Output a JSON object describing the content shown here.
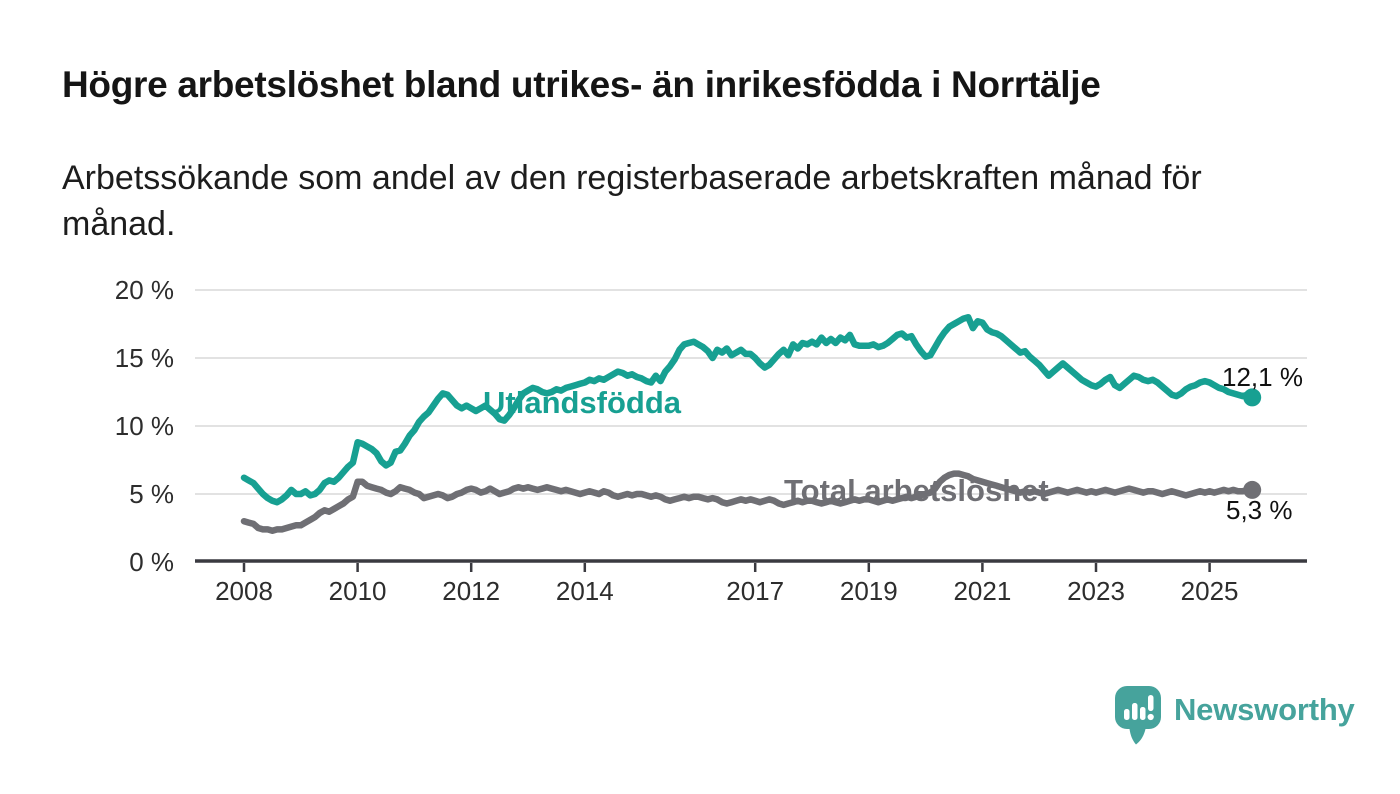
{
  "header": {
    "title": "Högre arbetslöshet bland utrikes- än inrikesfödda i Norrtälje",
    "subtitle_line1": "Arbetssökande som andel av den registerbaserade arbetskraften månad för",
    "subtitle_line2": "månad."
  },
  "branding": {
    "name": "Newsworthy",
    "logo_icon": "bar-chart-speech-bubble",
    "brand_color": "#46a39c"
  },
  "colors": {
    "series_foreign_born": "#17a092",
    "series_total": "#6f6f74",
    "gridline": "#d9d9d9",
    "axis": "#3a3a40",
    "tick_label": "#2d2d2d",
    "value_label": "#111111"
  },
  "chart_data": {
    "type": "line",
    "unit": "%",
    "grid": "horizontal",
    "legend_position": "inline-labels",
    "x_axis": {
      "start_year": 2008,
      "frequency": "monthly",
      "tick_years": [
        2008,
        2010,
        2012,
        2014,
        2017,
        2019,
        2021,
        2023,
        2025
      ],
      "tick_labels": [
        "2008",
        "2010",
        "2012",
        "2014",
        "2017",
        "2019",
        "2021",
        "2023",
        "2025"
      ]
    },
    "y_axis": {
      "ylim": [
        0,
        20
      ],
      "tick_values": [
        20,
        15,
        10,
        5,
        0
      ],
      "tick_labels": [
        "20 %",
        "15 %",
        "10 %",
        "5 %",
        "0 %"
      ]
    },
    "series": [
      {
        "name": "Utlandsfödda",
        "label": "Utlandsfödda",
        "color": "#17a092",
        "end_value": 12.1,
        "end_value_label": "12,1 %",
        "values": [
          6.2,
          6.0,
          5.8,
          5.4,
          5.0,
          4.7,
          4.5,
          4.4,
          4.6,
          4.9,
          5.3,
          5.0,
          5.0,
          5.2,
          4.9,
          5.0,
          5.3,
          5.8,
          6.0,
          5.9,
          6.2,
          6.6,
          7.0,
          7.3,
          8.8,
          8.7,
          8.5,
          8.3,
          8.0,
          7.4,
          7.1,
          7.3,
          8.1,
          8.2,
          8.7,
          9.3,
          9.7,
          10.3,
          10.7,
          11.0,
          11.5,
          12.0,
          12.4,
          12.3,
          11.9,
          11.5,
          11.3,
          11.5,
          11.3,
          11.1,
          11.3,
          11.5,
          11.2,
          10.9,
          10.5,
          10.4,
          10.8,
          11.3,
          11.9,
          12.4,
          12.6,
          12.8,
          12.7,
          12.5,
          12.4,
          12.5,
          12.7,
          12.6,
          12.8,
          12.9,
          13.0,
          13.1,
          13.2,
          13.4,
          13.3,
          13.5,
          13.4,
          13.6,
          13.8,
          14.0,
          13.9,
          13.7,
          13.8,
          13.6,
          13.5,
          13.3,
          13.2,
          13.7,
          13.3,
          14.0,
          14.4,
          14.9,
          15.6,
          16.0,
          16.1,
          16.2,
          16.0,
          15.8,
          15.5,
          15.0,
          15.6,
          15.4,
          15.7,
          15.2,
          15.4,
          15.6,
          15.3,
          15.3,
          15.0,
          14.6,
          14.3,
          14.5,
          14.9,
          15.3,
          15.6,
          15.2,
          16.0,
          15.7,
          16.1,
          16.0,
          16.2,
          16.0,
          16.5,
          16.1,
          16.4,
          16.1,
          16.5,
          16.3,
          16.7,
          16.0,
          15.9,
          15.9,
          15.9,
          16.0,
          15.8,
          15.9,
          16.1,
          16.4,
          16.7,
          16.8,
          16.5,
          16.6,
          16.0,
          15.5,
          15.1,
          15.2,
          15.8,
          16.4,
          16.9,
          17.3,
          17.5,
          17.7,
          17.9,
          18.0,
          17.2,
          17.7,
          17.6,
          17.1,
          16.9,
          16.8,
          16.6,
          16.3,
          16.0,
          15.7,
          15.4,
          15.5,
          15.1,
          14.8,
          14.5,
          14.1,
          13.7,
          14.0,
          14.3,
          14.6,
          14.3,
          14.0,
          13.7,
          13.4,
          13.2,
          13.0,
          12.9,
          13.1,
          13.4,
          13.6,
          13.0,
          12.8,
          13.1,
          13.4,
          13.7,
          13.6,
          13.4,
          13.3,
          13.4,
          13.2,
          12.9,
          12.6,
          12.3,
          12.2,
          12.4,
          12.7,
          12.9,
          13.0,
          13.2,
          13.3,
          13.2,
          13.0,
          12.8,
          12.7,
          12.5,
          12.4,
          12.3,
          12.2,
          12.3,
          12.1
        ]
      },
      {
        "name": "Total arbetslöshet",
        "label": "Total arbetslöshet",
        "color": "#6f6f74",
        "end_value": 5.3,
        "end_value_label": "5,3 %",
        "values": [
          3.0,
          2.9,
          2.8,
          2.5,
          2.4,
          2.4,
          2.3,
          2.4,
          2.4,
          2.5,
          2.6,
          2.7,
          2.7,
          2.9,
          3.1,
          3.3,
          3.6,
          3.8,
          3.7,
          3.9,
          4.1,
          4.3,
          4.6,
          4.8,
          5.9,
          5.9,
          5.6,
          5.5,
          5.4,
          5.3,
          5.1,
          5.0,
          5.2,
          5.5,
          5.4,
          5.3,
          5.1,
          5.0,
          4.7,
          4.8,
          4.9,
          5.0,
          4.9,
          4.7,
          4.8,
          5.0,
          5.1,
          5.3,
          5.4,
          5.3,
          5.1,
          5.2,
          5.4,
          5.2,
          5.0,
          5.1,
          5.2,
          5.4,
          5.5,
          5.4,
          5.5,
          5.4,
          5.3,
          5.4,
          5.5,
          5.4,
          5.3,
          5.2,
          5.3,
          5.2,
          5.1,
          5.0,
          5.1,
          5.2,
          5.1,
          5.0,
          5.2,
          5.1,
          4.9,
          4.8,
          4.9,
          5.0,
          4.9,
          5.0,
          5.0,
          4.9,
          4.8,
          4.9,
          4.8,
          4.6,
          4.5,
          4.6,
          4.7,
          4.8,
          4.7,
          4.8,
          4.8,
          4.7,
          4.6,
          4.7,
          4.6,
          4.4,
          4.3,
          4.4,
          4.5,
          4.6,
          4.5,
          4.6,
          4.5,
          4.4,
          4.5,
          4.6,
          4.5,
          4.3,
          4.2,
          4.3,
          4.4,
          4.5,
          4.4,
          4.5,
          4.5,
          4.4,
          4.3,
          4.4,
          4.5,
          4.4,
          4.3,
          4.4,
          4.5,
          4.6,
          4.5,
          4.6,
          4.6,
          4.5,
          4.4,
          4.5,
          4.6,
          4.5,
          4.6,
          4.7,
          4.8,
          4.7,
          4.8,
          4.9,
          5.0,
          5.1,
          5.4,
          5.9,
          6.2,
          6.4,
          6.5,
          6.5,
          6.4,
          6.3,
          6.1,
          6.0,
          5.9,
          5.8,
          5.7,
          5.6,
          5.5,
          5.4,
          5.3,
          5.2,
          5.1,
          5.2,
          5.1,
          5.2,
          5.1,
          5.0,
          5.1,
          5.2,
          5.3,
          5.2,
          5.1,
          5.2,
          5.3,
          5.2,
          5.1,
          5.2,
          5.1,
          5.2,
          5.3,
          5.2,
          5.1,
          5.2,
          5.3,
          5.4,
          5.3,
          5.2,
          5.1,
          5.2,
          5.2,
          5.1,
          5.0,
          5.1,
          5.2,
          5.1,
          5.0,
          4.9,
          5.0,
          5.1,
          5.2,
          5.1,
          5.2,
          5.1,
          5.2,
          5.3,
          5.2,
          5.3,
          5.2,
          5.2,
          5.3,
          5.3
        ]
      }
    ]
  }
}
